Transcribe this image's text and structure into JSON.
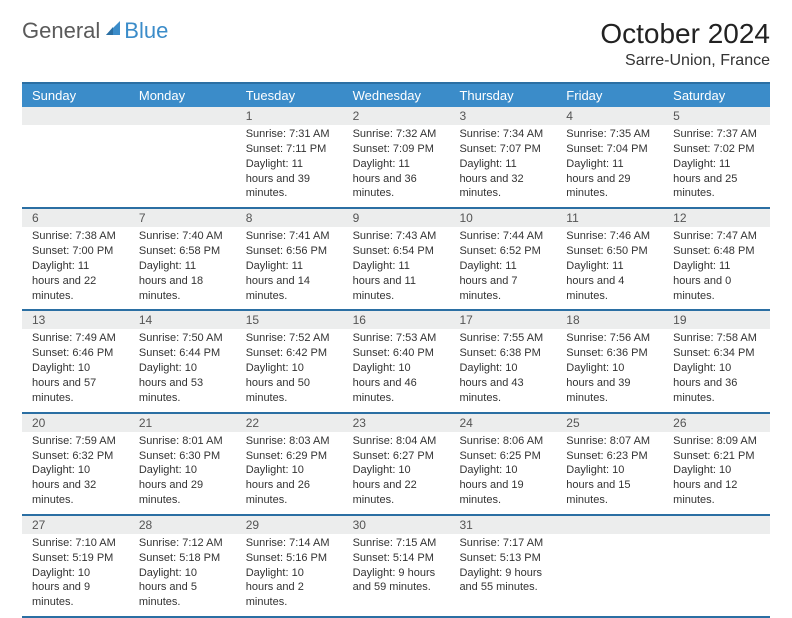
{
  "brand": {
    "part1": "General",
    "part2": "Blue"
  },
  "title": "October 2024",
  "location": "Sarre-Union, France",
  "colors": {
    "header_bg": "#3b8cc9",
    "border": "#2b6fa3",
    "daynum_bg": "#eceded",
    "text": "#333333",
    "logo_gray": "#5a5a5a",
    "logo_blue": "#3b8cc9"
  },
  "dayNames": [
    "Sunday",
    "Monday",
    "Tuesday",
    "Wednesday",
    "Thursday",
    "Friday",
    "Saturday"
  ],
  "weeks": [
    [
      {
        "num": "",
        "lines": []
      },
      {
        "num": "",
        "lines": []
      },
      {
        "num": "1",
        "lines": [
          "Sunrise: 7:31 AM",
          "Sunset: 7:11 PM",
          "Daylight: 11 hours and 39 minutes."
        ]
      },
      {
        "num": "2",
        "lines": [
          "Sunrise: 7:32 AM",
          "Sunset: 7:09 PM",
          "Daylight: 11 hours and 36 minutes."
        ]
      },
      {
        "num": "3",
        "lines": [
          "Sunrise: 7:34 AM",
          "Sunset: 7:07 PM",
          "Daylight: 11 hours and 32 minutes."
        ]
      },
      {
        "num": "4",
        "lines": [
          "Sunrise: 7:35 AM",
          "Sunset: 7:04 PM",
          "Daylight: 11 hours and 29 minutes."
        ]
      },
      {
        "num": "5",
        "lines": [
          "Sunrise: 7:37 AM",
          "Sunset: 7:02 PM",
          "Daylight: 11 hours and 25 minutes."
        ]
      }
    ],
    [
      {
        "num": "6",
        "lines": [
          "Sunrise: 7:38 AM",
          "Sunset: 7:00 PM",
          "Daylight: 11 hours and 22 minutes."
        ]
      },
      {
        "num": "7",
        "lines": [
          "Sunrise: 7:40 AM",
          "Sunset: 6:58 PM",
          "Daylight: 11 hours and 18 minutes."
        ]
      },
      {
        "num": "8",
        "lines": [
          "Sunrise: 7:41 AM",
          "Sunset: 6:56 PM",
          "Daylight: 11 hours and 14 minutes."
        ]
      },
      {
        "num": "9",
        "lines": [
          "Sunrise: 7:43 AM",
          "Sunset: 6:54 PM",
          "Daylight: 11 hours and 11 minutes."
        ]
      },
      {
        "num": "10",
        "lines": [
          "Sunrise: 7:44 AM",
          "Sunset: 6:52 PM",
          "Daylight: 11 hours and 7 minutes."
        ]
      },
      {
        "num": "11",
        "lines": [
          "Sunrise: 7:46 AM",
          "Sunset: 6:50 PM",
          "Daylight: 11 hours and 4 minutes."
        ]
      },
      {
        "num": "12",
        "lines": [
          "Sunrise: 7:47 AM",
          "Sunset: 6:48 PM",
          "Daylight: 11 hours and 0 minutes."
        ]
      }
    ],
    [
      {
        "num": "13",
        "lines": [
          "Sunrise: 7:49 AM",
          "Sunset: 6:46 PM",
          "Daylight: 10 hours and 57 minutes."
        ]
      },
      {
        "num": "14",
        "lines": [
          "Sunrise: 7:50 AM",
          "Sunset: 6:44 PM",
          "Daylight: 10 hours and 53 minutes."
        ]
      },
      {
        "num": "15",
        "lines": [
          "Sunrise: 7:52 AM",
          "Sunset: 6:42 PM",
          "Daylight: 10 hours and 50 minutes."
        ]
      },
      {
        "num": "16",
        "lines": [
          "Sunrise: 7:53 AM",
          "Sunset: 6:40 PM",
          "Daylight: 10 hours and 46 minutes."
        ]
      },
      {
        "num": "17",
        "lines": [
          "Sunrise: 7:55 AM",
          "Sunset: 6:38 PM",
          "Daylight: 10 hours and 43 minutes."
        ]
      },
      {
        "num": "18",
        "lines": [
          "Sunrise: 7:56 AM",
          "Sunset: 6:36 PM",
          "Daylight: 10 hours and 39 minutes."
        ]
      },
      {
        "num": "19",
        "lines": [
          "Sunrise: 7:58 AM",
          "Sunset: 6:34 PM",
          "Daylight: 10 hours and 36 minutes."
        ]
      }
    ],
    [
      {
        "num": "20",
        "lines": [
          "Sunrise: 7:59 AM",
          "Sunset: 6:32 PM",
          "Daylight: 10 hours and 32 minutes."
        ]
      },
      {
        "num": "21",
        "lines": [
          "Sunrise: 8:01 AM",
          "Sunset: 6:30 PM",
          "Daylight: 10 hours and 29 minutes."
        ]
      },
      {
        "num": "22",
        "lines": [
          "Sunrise: 8:03 AM",
          "Sunset: 6:29 PM",
          "Daylight: 10 hours and 26 minutes."
        ]
      },
      {
        "num": "23",
        "lines": [
          "Sunrise: 8:04 AM",
          "Sunset: 6:27 PM",
          "Daylight: 10 hours and 22 minutes."
        ]
      },
      {
        "num": "24",
        "lines": [
          "Sunrise: 8:06 AM",
          "Sunset: 6:25 PM",
          "Daylight: 10 hours and 19 minutes."
        ]
      },
      {
        "num": "25",
        "lines": [
          "Sunrise: 8:07 AM",
          "Sunset: 6:23 PM",
          "Daylight: 10 hours and 15 minutes."
        ]
      },
      {
        "num": "26",
        "lines": [
          "Sunrise: 8:09 AM",
          "Sunset: 6:21 PM",
          "Daylight: 10 hours and 12 minutes."
        ]
      }
    ],
    [
      {
        "num": "27",
        "lines": [
          "Sunrise: 7:10 AM",
          "Sunset: 5:19 PM",
          "Daylight: 10 hours and 9 minutes."
        ]
      },
      {
        "num": "28",
        "lines": [
          "Sunrise: 7:12 AM",
          "Sunset: 5:18 PM",
          "Daylight: 10 hours and 5 minutes."
        ]
      },
      {
        "num": "29",
        "lines": [
          "Sunrise: 7:14 AM",
          "Sunset: 5:16 PM",
          "Daylight: 10 hours and 2 minutes."
        ]
      },
      {
        "num": "30",
        "lines": [
          "Sunrise: 7:15 AM",
          "Sunset: 5:14 PM",
          "Daylight: 9 hours and 59 minutes."
        ]
      },
      {
        "num": "31",
        "lines": [
          "Sunrise: 7:17 AM",
          "Sunset: 5:13 PM",
          "Daylight: 9 hours and 55 minutes."
        ]
      },
      {
        "num": "",
        "lines": []
      },
      {
        "num": "",
        "lines": []
      }
    ]
  ]
}
